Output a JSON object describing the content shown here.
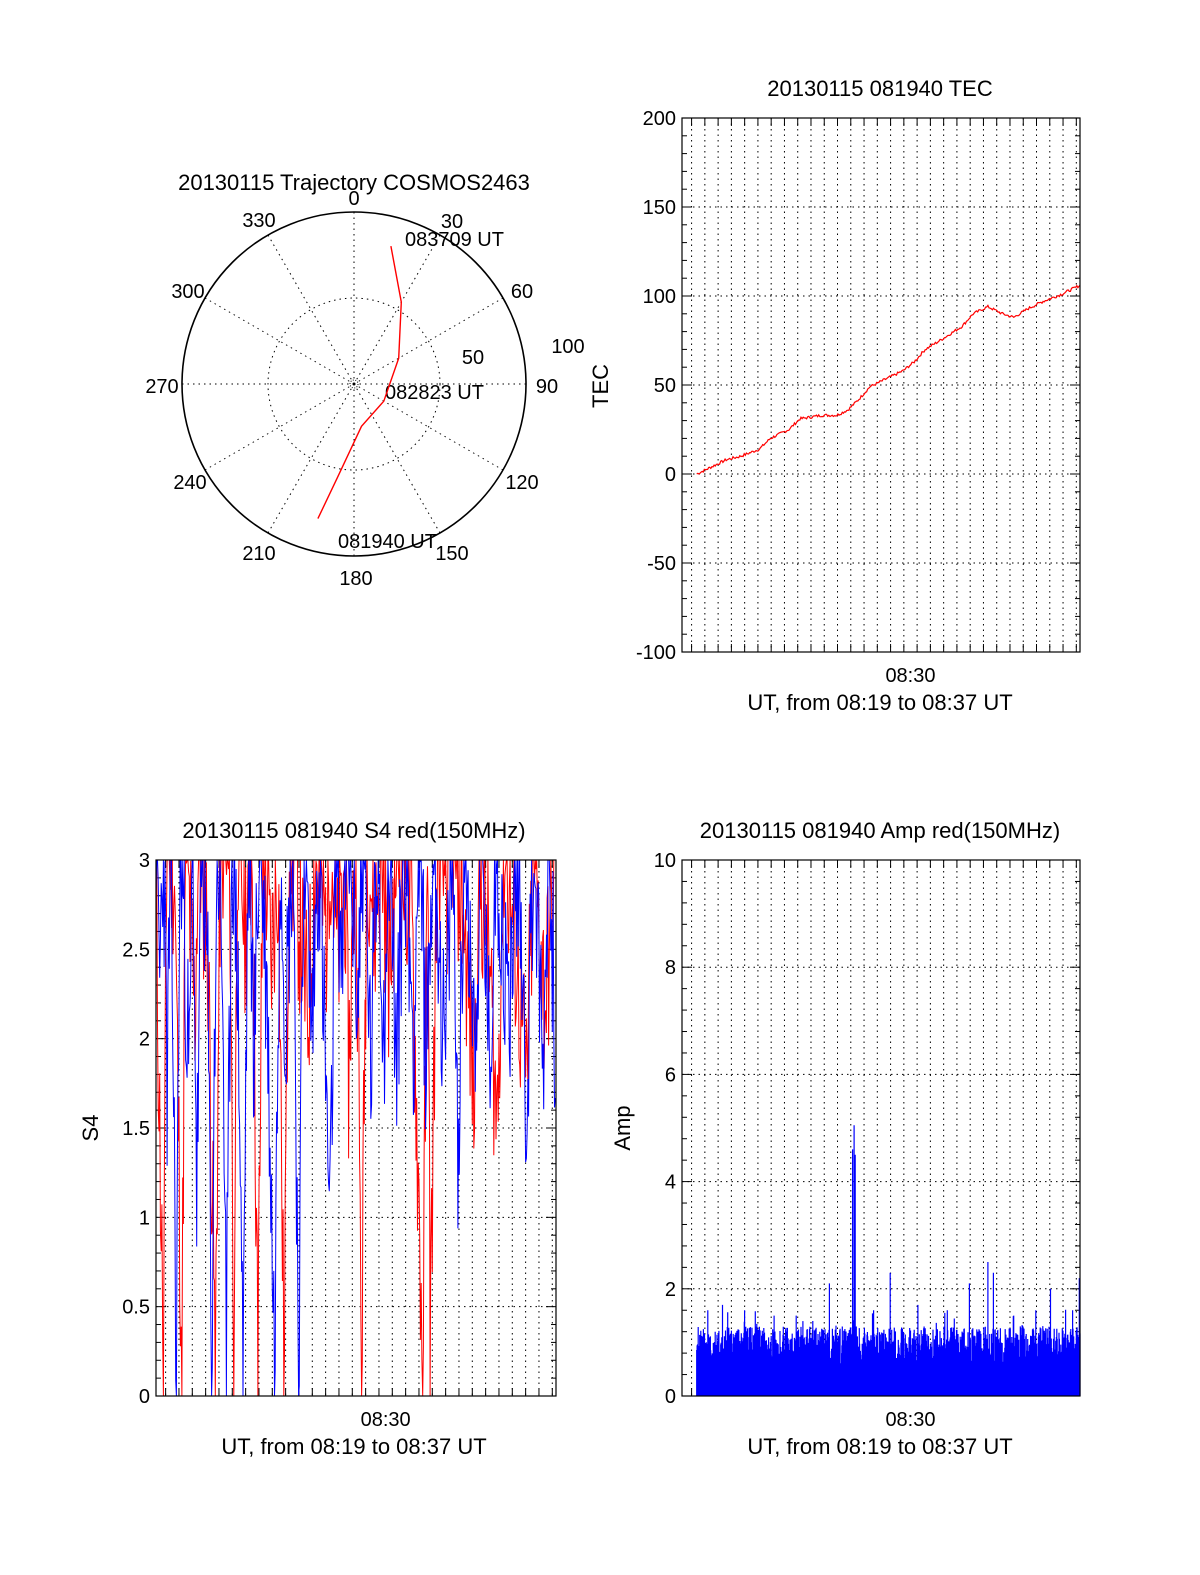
{
  "colors": {
    "red": "#ff0000",
    "blue": "#0000ff",
    "axis": "#000000",
    "background": "#ffffff"
  },
  "chart_data": [
    {
      "id": "trajectory",
      "type": "polar",
      "title": "20130115 Trajectory COSMOS2463",
      "angle_labels": [
        "0",
        "30",
        "60",
        "90",
        "120",
        "150",
        "180",
        "210",
        "240",
        "270",
        "300",
        "330"
      ],
      "radial_max": 100,
      "radial_labels": [
        "50",
        "100"
      ],
      "radial_values": [
        50,
        100
      ],
      "annotations": [
        "083709 UT",
        "082823 UT",
        "081940 UT"
      ],
      "series": [
        {
          "color": "red",
          "points": [
            {
              "az": 195,
              "r": 81
            },
            {
              "az": 190,
              "r": 55
            },
            {
              "az": 170,
              "r": 25
            },
            {
              "az": 120,
              "r": 20
            },
            {
              "az": 60,
              "r": 30
            },
            {
              "az": 30,
              "r": 55
            },
            {
              "az": 15,
              "r": 83
            }
          ]
        }
      ]
    },
    {
      "id": "tec",
      "type": "line",
      "title": "20130115 081940 TEC",
      "xlabel": "UT, from 08:19 to 08:37 UT",
      "ylabel": "TEC",
      "xlim": [
        0,
        1080
      ],
      "ylim": [
        -100,
        200
      ],
      "yticks": [
        -100,
        -50,
        0,
        50,
        100,
        150,
        200
      ],
      "ytick_labels": [
        "-100",
        "-50",
        "0",
        "50",
        "100",
        "150",
        "200"
      ],
      "xticks": [
        620
      ],
      "xtick_labels": [
        "08:30"
      ],
      "x_grid_step": 36,
      "series": [
        {
          "color": "red",
          "x": [
            40,
            90,
            120,
            160,
            210,
            240,
            290,
            320,
            380,
            420,
            450,
            480,
            510,
            540,
            600,
            630,
            660,
            700,
            760,
            790,
            830,
            870,
            900,
            940,
            980,
            1030,
            1060,
            1080
          ],
          "y": [
            0,
            5,
            8,
            10,
            14,
            20,
            25,
            31,
            33,
            33,
            36,
            42,
            49,
            52,
            58,
            63,
            70,
            75,
            83,
            90,
            94,
            90,
            88,
            93,
            97,
            101,
            104,
            106
          ]
        }
      ]
    },
    {
      "id": "s4",
      "type": "line",
      "title": "20130115 081940 S4 red(150MHz)",
      "xlabel": "UT, from 08:19 to 08:37 UT",
      "ylabel": "S4",
      "xlim": [
        0,
        1080
      ],
      "ylim": [
        0,
        3
      ],
      "yticks": [
        0,
        0.5,
        1,
        1.5,
        2,
        2.5,
        3
      ],
      "ytick_labels": [
        "0",
        "0.5",
        "1",
        "1.5",
        "2",
        "2.5",
        "3"
      ],
      "xticks": [
        620
      ],
      "xtick_labels": [
        "08:30"
      ],
      "x_grid_step": 36,
      "series": [
        {
          "color": "red",
          "points": [
            [
              0,
              2.6
            ],
            [
              20,
              0
            ],
            [
              30,
              3
            ],
            [
              50,
              2.7
            ],
            [
              70,
              0
            ],
            [
              80,
              3
            ],
            [
              90,
              2.5
            ],
            [
              105,
              1.9
            ],
            [
              115,
              3
            ],
            [
              140,
              2.3
            ],
            [
              160,
              0
            ],
            [
              175,
              3
            ],
            [
              200,
              2.6
            ],
            [
              210,
              0
            ],
            [
              220,
              3
            ],
            [
              240,
              2.4
            ],
            [
              260,
              2.9
            ],
            [
              275,
              0
            ],
            [
              290,
              3
            ],
            [
              310,
              2.2
            ],
            [
              330,
              2.8
            ],
            [
              345,
              0
            ],
            [
              360,
              3
            ],
            [
              380,
              2.6
            ],
            [
              410,
              1.9
            ],
            [
              430,
              2.8
            ],
            [
              460,
              2.4
            ],
            [
              470,
              3
            ],
            [
              490,
              2.2
            ],
            [
              510,
              2.7
            ],
            [
              520,
              1.6
            ],
            [
              540,
              3
            ],
            [
              555,
              0
            ],
            [
              570,
              3
            ],
            [
              590,
              2.4
            ],
            [
              610,
              2.9
            ],
            [
              630,
              2.1
            ],
            [
              650,
              2.9
            ],
            [
              690,
              2.5
            ],
            [
              720,
              0
            ],
            [
              735,
              3
            ],
            [
              740,
              0
            ],
            [
              760,
              3
            ],
            [
              790,
              2.6
            ],
            [
              800,
              3
            ],
            [
              830,
              2.5
            ],
            [
              860,
              1.4
            ],
            [
              870,
              2.8
            ],
            [
              900,
              2.2
            ],
            [
              920,
              1.3
            ],
            [
              940,
              2.9
            ],
            [
              970,
              2.3
            ],
            [
              1000,
              1.5
            ],
            [
              1020,
              2.8
            ],
            [
              1050,
              2.0
            ],
            [
              1080,
              2.7
            ]
          ]
        },
        {
          "color": "blue",
          "points": [
            [
              0,
              3
            ],
            [
              10,
              2.1
            ],
            [
              20,
              3
            ],
            [
              30,
              1.5
            ],
            [
              40,
              2.9
            ],
            [
              55,
              0
            ],
            [
              65,
              3
            ],
            [
              80,
              2.2
            ],
            [
              90,
              1.5
            ],
            [
              100,
              3
            ],
            [
              110,
              0.9
            ],
            [
              125,
              3
            ],
            [
              140,
              2.0
            ],
            [
              150,
              0
            ],
            [
              165,
              3
            ],
            [
              180,
              2.1
            ],
            [
              190,
              0
            ],
            [
              205,
              3
            ],
            [
              220,
              2.2
            ],
            [
              235,
              0
            ],
            [
              250,
              3
            ],
            [
              265,
              1.7
            ],
            [
              280,
              3
            ],
            [
              300,
              2.0
            ],
            [
              320,
              0
            ],
            [
              335,
              3
            ],
            [
              350,
              1.9
            ],
            [
              370,
              3
            ],
            [
              385,
              0
            ],
            [
              400,
              3
            ],
            [
              420,
              1.8
            ],
            [
              440,
              2.9
            ],
            [
              460,
              1.4
            ],
            [
              470,
              0.65
            ],
            [
              485,
              3
            ],
            [
              500,
              2.3
            ],
            [
              520,
              3
            ],
            [
              545,
              2.0
            ],
            [
              560,
              3
            ],
            [
              580,
              1.6
            ],
            [
              600,
              3
            ],
            [
              615,
              1.8
            ],
            [
              630,
              2.9
            ],
            [
              650,
              1.6
            ],
            [
              670,
              3
            ],
            [
              695,
              1.8
            ],
            [
              710,
              2.9
            ],
            [
              730,
              1.7
            ],
            [
              750,
              3
            ],
            [
              780,
              1.6
            ],
            [
              800,
              2.9
            ],
            [
              815,
              1.2
            ],
            [
              835,
              3
            ],
            [
              860,
              1.8
            ],
            [
              880,
              2.9
            ],
            [
              900,
              1.6
            ],
            [
              920,
              2.9
            ],
            [
              950,
              1.9
            ],
            [
              980,
              2.9
            ],
            [
              1000,
              1.4
            ],
            [
              1020,
              2.9
            ],
            [
              1045,
              1.6
            ],
            [
              1060,
              2.9
            ],
            [
              1080,
              1.7
            ]
          ]
        }
      ]
    },
    {
      "id": "amp",
      "type": "line",
      "title": "20130115 081940 Amp red(150MHz)",
      "xlabel": "UT, from 08:19 to 08:37 UT",
      "ylabel": "Amp",
      "xlim": [
        0,
        1080
      ],
      "ylim": [
        0,
        10
      ],
      "yticks": [
        0,
        2,
        4,
        6,
        8,
        10
      ],
      "ytick_labels": [
        "0",
        "2",
        "4",
        "6",
        "8",
        "10"
      ],
      "xticks": [
        620
      ],
      "xtick_labels": [
        "08:30"
      ],
      "x_grid_step": 36,
      "series": [
        {
          "color": "blue",
          "x_start": 40,
          "x_end": 1080,
          "baseline": 0,
          "typical_max": 1.3,
          "peaks": [
            {
              "x": 70,
              "y": 1.6
            },
            {
              "x": 110,
              "y": 1.7
            },
            {
              "x": 170,
              "y": 1.6
            },
            {
              "x": 250,
              "y": 1.5
            },
            {
              "x": 310,
              "y": 1.5
            },
            {
              "x": 355,
              "y": 1.4
            },
            {
              "x": 400,
              "y": 2.1
            },
            {
              "x": 463,
              "y": 4.6
            },
            {
              "x": 467,
              "y": 5.05
            },
            {
              "x": 470,
              "y": 4.5
            },
            {
              "x": 520,
              "y": 1.6
            },
            {
              "x": 565,
              "y": 2.3
            },
            {
              "x": 640,
              "y": 1.7
            },
            {
              "x": 720,
              "y": 1.6
            },
            {
              "x": 780,
              "y": 2.1
            },
            {
              "x": 830,
              "y": 2.5
            },
            {
              "x": 845,
              "y": 2.3
            },
            {
              "x": 900,
              "y": 1.5
            },
            {
              "x": 960,
              "y": 1.6
            },
            {
              "x": 1000,
              "y": 2.0
            },
            {
              "x": 1060,
              "y": 1.6
            },
            {
              "x": 1078,
              "y": 2.2
            }
          ]
        }
      ]
    }
  ]
}
